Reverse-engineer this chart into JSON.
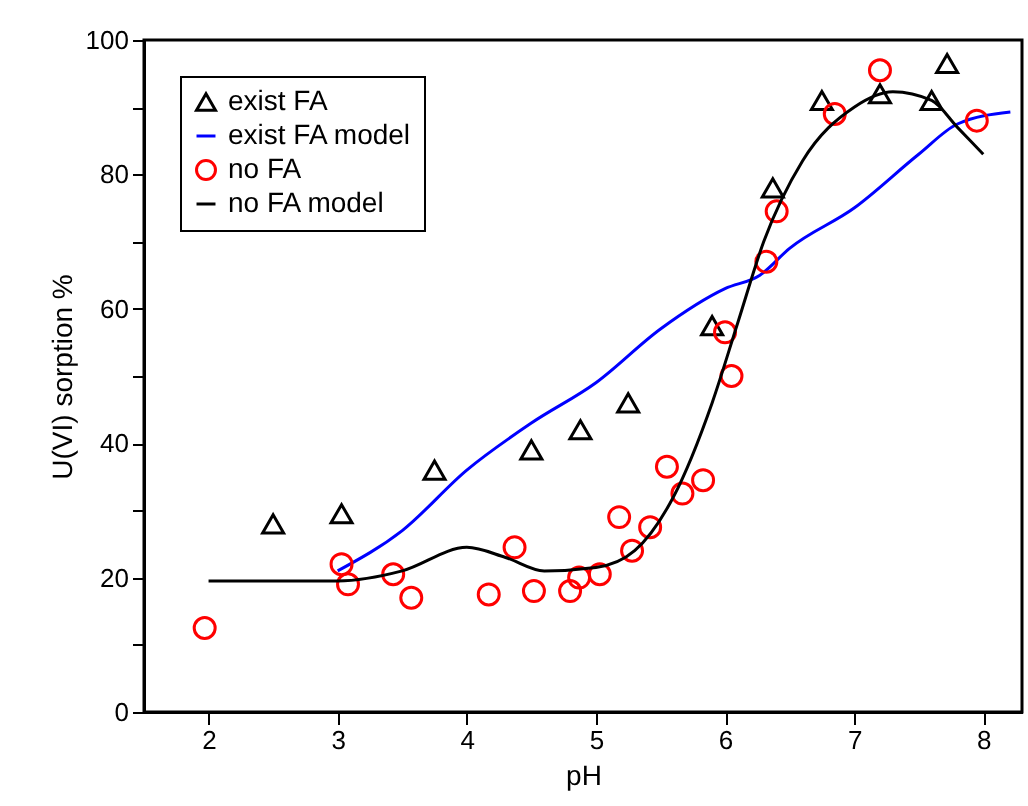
{
  "chart_data": {
    "type": "scatter",
    "xlabel": "pH",
    "ylabel": "U(VI) sorption %",
    "xlim": [
      1.5,
      8.3
    ],
    "ylim": [
      0,
      100
    ],
    "xticks": [
      2,
      3,
      4,
      5,
      6,
      7,
      8
    ],
    "yticks": [
      0,
      {
        "value": 10,
        "label": null
      },
      20,
      {
        "value": 30,
        "label": null
      },
      40,
      {
        "value": 50,
        "label": null
      },
      60,
      {
        "value": 70,
        "label": null
      },
      80,
      {
        "value": 90,
        "label": null
      },
      100
    ],
    "legend": "top left",
    "grid": false,
    "series": [
      {
        "name": "exist FA",
        "type": "scatter",
        "marker": "triangle",
        "color": "#000000",
        "x": [
          2.5,
          3.03,
          3.75,
          4.5,
          4.88,
          5.25,
          5.9,
          6.37,
          6.75,
          7.2,
          7.6,
          7.72
        ],
        "values": [
          28,
          29.5,
          36,
          39,
          42,
          46,
          57.5,
          78,
          91,
          92,
          91,
          96.5
        ]
      },
      {
        "name": "exist FA model",
        "type": "line",
        "color": "#0000ff",
        "x": [
          3,
          3.5,
          4,
          4.5,
          5,
          5.5,
          6,
          6.27,
          6.5,
          7,
          7.5,
          7.8,
          8.21
        ],
        "values": [
          21,
          27,
          36,
          43,
          49,
          57,
          63,
          65,
          69,
          75,
          83,
          87.5,
          89.3
        ]
      },
      {
        "name": "no FA",
        "type": "scatter",
        "marker": "circle",
        "color": "#ff0000",
        "x": [
          1.97,
          3.03,
          3.08,
          3.43,
          3.57,
          4.17,
          4.37,
          4.52,
          4.8,
          4.87,
          5.03,
          5.18,
          5.28,
          5.42,
          5.55,
          5.67,
          5.83,
          6.0,
          6.05,
          6.32,
          6.4,
          6.85,
          7.2,
          7.95
        ],
        "values": [
          12.5,
          22,
          19,
          20.5,
          17,
          17.5,
          24.5,
          18,
          18,
          20,
          20.5,
          29,
          24,
          27.5,
          36.5,
          32.5,
          34.5,
          56.5,
          50,
          67,
          74.5,
          89,
          95.5,
          88
        ]
      },
      {
        "name": "no FA model",
        "type": "line",
        "color": "#000000",
        "x": [
          2,
          2.5,
          3,
          3.5,
          4,
          4.3,
          4.6,
          5,
          5.3,
          5.6,
          5.9,
          6.1,
          6.3,
          6.6,
          7,
          7.3,
          7.6,
          7.8,
          8
        ],
        "values": [
          19.5,
          19.5,
          19.5,
          21,
          24.5,
          23,
          21,
          21.5,
          24,
          32,
          46,
          58,
          70,
          82,
          90,
          92.3,
          91,
          87,
          83
        ]
      }
    ]
  }
}
